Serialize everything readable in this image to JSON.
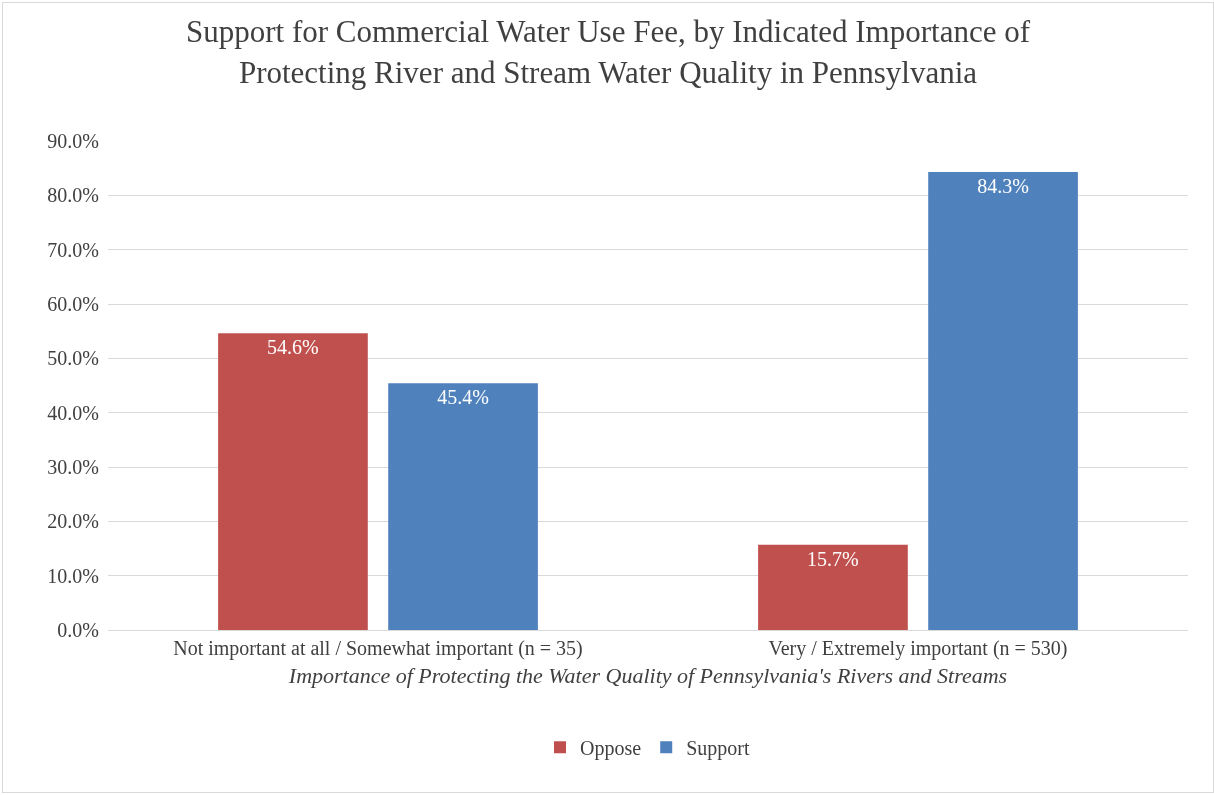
{
  "chart_data": {
    "type": "bar",
    "title": "Support for Commercial Water Use Fee, by Indicated Importance of Protecting River and Stream Water Quality in Pennsylvania",
    "xlabel": "Importance of Protecting the Water Quality of Pennsylvania's Rivers and Streams",
    "categories": [
      "Not important at all / Somewhat important (n = 35)",
      "Very / Extremely important (n = 530)"
    ],
    "series": [
      {
        "name": "Oppose",
        "color": "#c0504d",
        "values": [
          54.6,
          15.7
        ],
        "value_labels": [
          "54.6%",
          "15.7%"
        ]
      },
      {
        "name": "Support",
        "color": "#4f81bd",
        "values": [
          45.4,
          84.3
        ],
        "value_labels": [
          "45.4%",
          "84.3%"
        ]
      }
    ],
    "ylim": [
      0,
      90
    ],
    "yticks": [
      {
        "value": 0,
        "label": "0.0%"
      },
      {
        "value": 10,
        "label": "10.0%"
      },
      {
        "value": 20,
        "label": "20.0%"
      },
      {
        "value": 30,
        "label": "30.0%"
      },
      {
        "value": 40,
        "label": "40.0%"
      },
      {
        "value": 50,
        "label": "50.0%"
      },
      {
        "value": 60,
        "label": "60.0%"
      },
      {
        "value": 70,
        "label": "70.0%"
      },
      {
        "value": 80,
        "label": "80.0%"
      },
      {
        "value": 90,
        "label": "90.0%"
      }
    ],
    "grid": "y",
    "legend": "bottom"
  }
}
